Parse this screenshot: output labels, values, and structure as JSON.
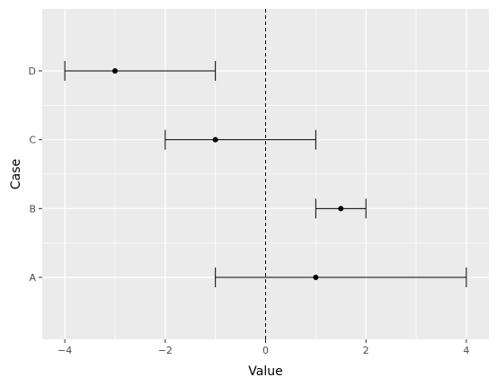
{
  "chart_data": {
    "type": "scatter",
    "title": "",
    "xlabel": "Value",
    "ylabel": "Case",
    "xlim": [
      -4.45,
      4.45
    ],
    "x_ticks": [
      -4,
      -2,
      0,
      2,
      4
    ],
    "x_tick_labels": [
      "−4",
      "−2",
      "0",
      "2",
      "4"
    ],
    "categories": [
      "A",
      "B",
      "C",
      "D"
    ],
    "points": [
      {
        "case": "A",
        "value": 1.0,
        "low": -1.0,
        "high": 4.0
      },
      {
        "case": "B",
        "value": 1.5,
        "low": 1.0,
        "high": 2.0
      },
      {
        "case": "C",
        "value": -1.0,
        "low": -2.0,
        "high": 1.0
      },
      {
        "case": "D",
        "value": -3.0,
        "low": -4.0,
        "high": -1.0
      }
    ],
    "reference_line": {
      "x": 0,
      "style": "dashed"
    },
    "grid": true,
    "legend": "none",
    "colors": {
      "panel": "#ebebeb",
      "grid": "#ffffff",
      "ink": "#000000",
      "tick_text": "#4d4d4d"
    }
  }
}
